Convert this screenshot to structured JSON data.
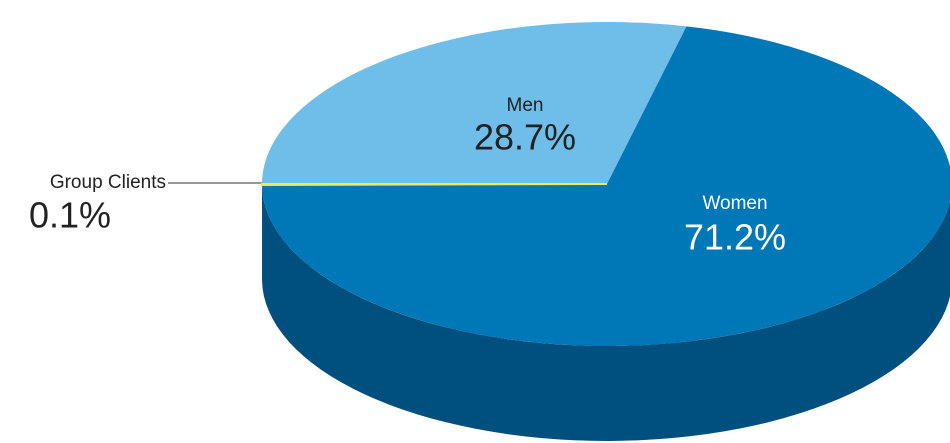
{
  "chart_data": {
    "type": "pie",
    "categories": [
      "Men",
      "Women",
      "Group Clients"
    ],
    "values": [
      28.7,
      71.2,
      0.1
    ],
    "value_labels": [
      "28.7%",
      "71.2%",
      "0.1%"
    ],
    "colors": [
      "#6fbde9",
      "#0077b6",
      "#f2e94e"
    ],
    "side_colors": [
      "#4a8fb8",
      "#00507f",
      "#c9c23a"
    ]
  }
}
